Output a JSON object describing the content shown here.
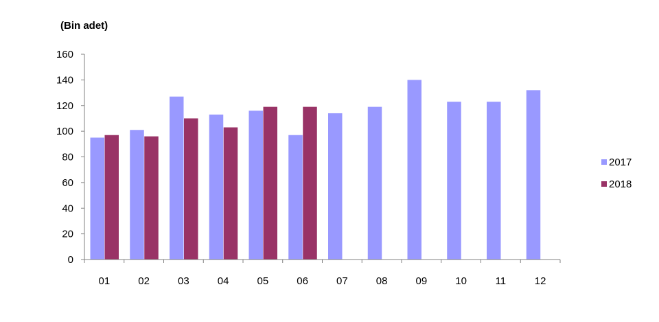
{
  "chart_data": {
    "type": "bar",
    "ylabel": "(Bin adet)",
    "ylim": [
      0,
      160
    ],
    "yticks": [
      0,
      20,
      40,
      60,
      80,
      100,
      120,
      140,
      160
    ],
    "categories": [
      "01",
      "02",
      "03",
      "04",
      "05",
      "06",
      "07",
      "08",
      "09",
      "10",
      "11",
      "12"
    ],
    "series": [
      {
        "name": "2017",
        "color": "#9999ff",
        "values": [
          95,
          101,
          127,
          113,
          116,
          97,
          114,
          119,
          140,
          123,
          123,
          132
        ]
      },
      {
        "name": "2018",
        "color": "#993366",
        "values": [
          97,
          96,
          110,
          103,
          119,
          119,
          null,
          null,
          null,
          null,
          null,
          null
        ]
      }
    ],
    "grid": false,
    "legend": "right"
  }
}
